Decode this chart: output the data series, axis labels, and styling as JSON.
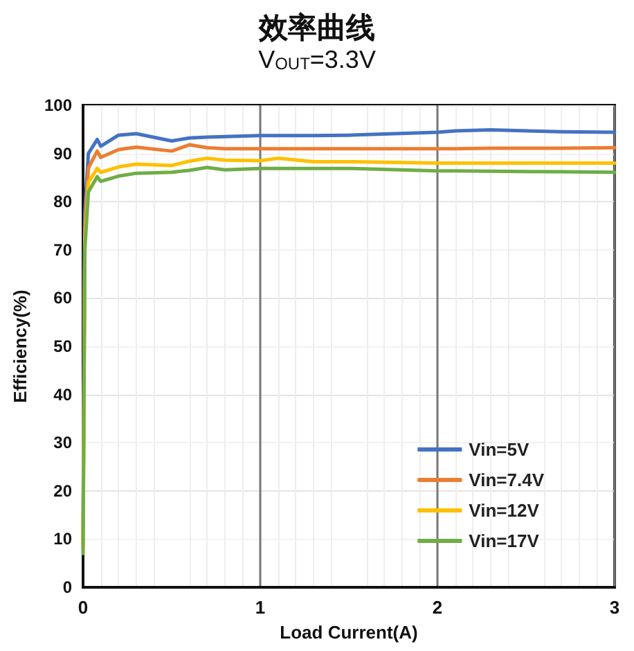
{
  "chart_data": {
    "type": "line",
    "title": "效率曲线",
    "subtitle": "V$_{OUT}$=3.3V",
    "xlabel": "Load Current(A)",
    "ylabel": "Efficiency(%)",
    "xlim": [
      0,
      3
    ],
    "xticks": [
      0,
      1,
      2,
      3
    ],
    "ylim": [
      0,
      100
    ],
    "yticks": [
      0,
      10,
      20,
      30,
      40,
      50,
      60,
      70,
      80,
      90,
      100
    ],
    "grid": true,
    "legend": "bottom right",
    "marker": "none",
    "line_style": "solid",
    "x": [
      0,
      0.01,
      0.03,
      0.08,
      0.1,
      0.2,
      0.3,
      0.5,
      0.6,
      0.7,
      0.8,
      1.0,
      1.1,
      1.3,
      1.5,
      2.0,
      2.1,
      2.3,
      2.7,
      3.0
    ],
    "series": [
      {
        "name": "Vin=5V",
        "color": "#4472c4",
        "values": [
          10,
          78,
          90,
          92.9,
          91.5,
          93.8,
          94.1,
          92.6,
          93.2,
          93.4,
          93.5,
          93.7,
          93.7,
          93.7,
          93.8,
          94.4,
          94.7,
          94.9,
          94.5,
          94.4
        ]
      },
      {
        "name": "Vin=7.4V",
        "color": "#ed7d31",
        "values": [
          9,
          74,
          87,
          90.5,
          89.2,
          90.8,
          91.3,
          90.5,
          91.8,
          91.2,
          91.0,
          91.0,
          91.0,
          91.0,
          91.0,
          91.0,
          91.0,
          91.1,
          91.1,
          91.2
        ]
      },
      {
        "name": "Vin=12V",
        "color": "#ffc000",
        "values": [
          8,
          72,
          84,
          86.9,
          86.1,
          87.2,
          87.8,
          87.5,
          88.4,
          89.0,
          88.6,
          88.5,
          89.0,
          88.3,
          88.3,
          88.0,
          88.0,
          88.0,
          88.0,
          88.0
        ]
      },
      {
        "name": "Vin=17V",
        "color": "#70ad47",
        "values": [
          7,
          70,
          82,
          85.2,
          84.2,
          85.3,
          85.9,
          86.1,
          86.5,
          87.1,
          86.6,
          86.9,
          86.9,
          86.9,
          86.9,
          86.4,
          86.4,
          86.3,
          86.2,
          86.1
        ]
      }
    ]
  }
}
